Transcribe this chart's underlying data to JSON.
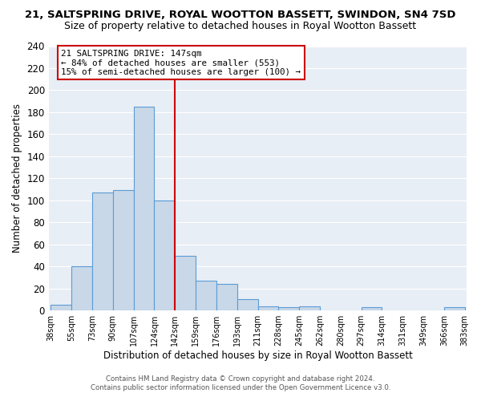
{
  "title": "21, SALTSPRING DRIVE, ROYAL WOOTTON BASSETT, SWINDON, SN4 7SD",
  "subtitle": "Size of property relative to detached houses in Royal Wootton Bassett",
  "xlabel": "Distribution of detached houses by size in Royal Wootton Bassett",
  "ylabel": "Number of detached properties",
  "bin_labels": [
    "38sqm",
    "55sqm",
    "73sqm",
    "90sqm",
    "107sqm",
    "124sqm",
    "142sqm",
    "159sqm",
    "176sqm",
    "193sqm",
    "211sqm",
    "228sqm",
    "245sqm",
    "262sqm",
    "280sqm",
    "297sqm",
    "314sqm",
    "331sqm",
    "349sqm",
    "366sqm",
    "383sqm"
  ],
  "bar_values": [
    5,
    40,
    107,
    109,
    185,
    100,
    50,
    27,
    24,
    10,
    4,
    3,
    4,
    0,
    0,
    3,
    0,
    0,
    0,
    3
  ],
  "bar_color": "#c8d8e8",
  "bar_edge_color": "#5b9bd5",
  "vline_x_index": 6,
  "vline_color": "#cc0000",
  "ylim": [
    0,
    240
  ],
  "yticks": [
    0,
    20,
    40,
    60,
    80,
    100,
    120,
    140,
    160,
    180,
    200,
    220,
    240
  ],
  "annotation_title": "21 SALTSPRING DRIVE: 147sqm",
  "annotation_line1": "← 84% of detached houses are smaller (553)",
  "annotation_line2": "15% of semi-detached houses are larger (100) →",
  "annotation_box_color": "#ffffff",
  "annotation_box_edge": "#cc0000",
  "footer1": "Contains HM Land Registry data © Crown copyright and database right 2024.",
  "footer2": "Contains public sector information licensed under the Open Government Licence v3.0.",
  "bg_color": "#e8eef5",
  "title_fontsize": 9.5,
  "subtitle_fontsize": 9
}
